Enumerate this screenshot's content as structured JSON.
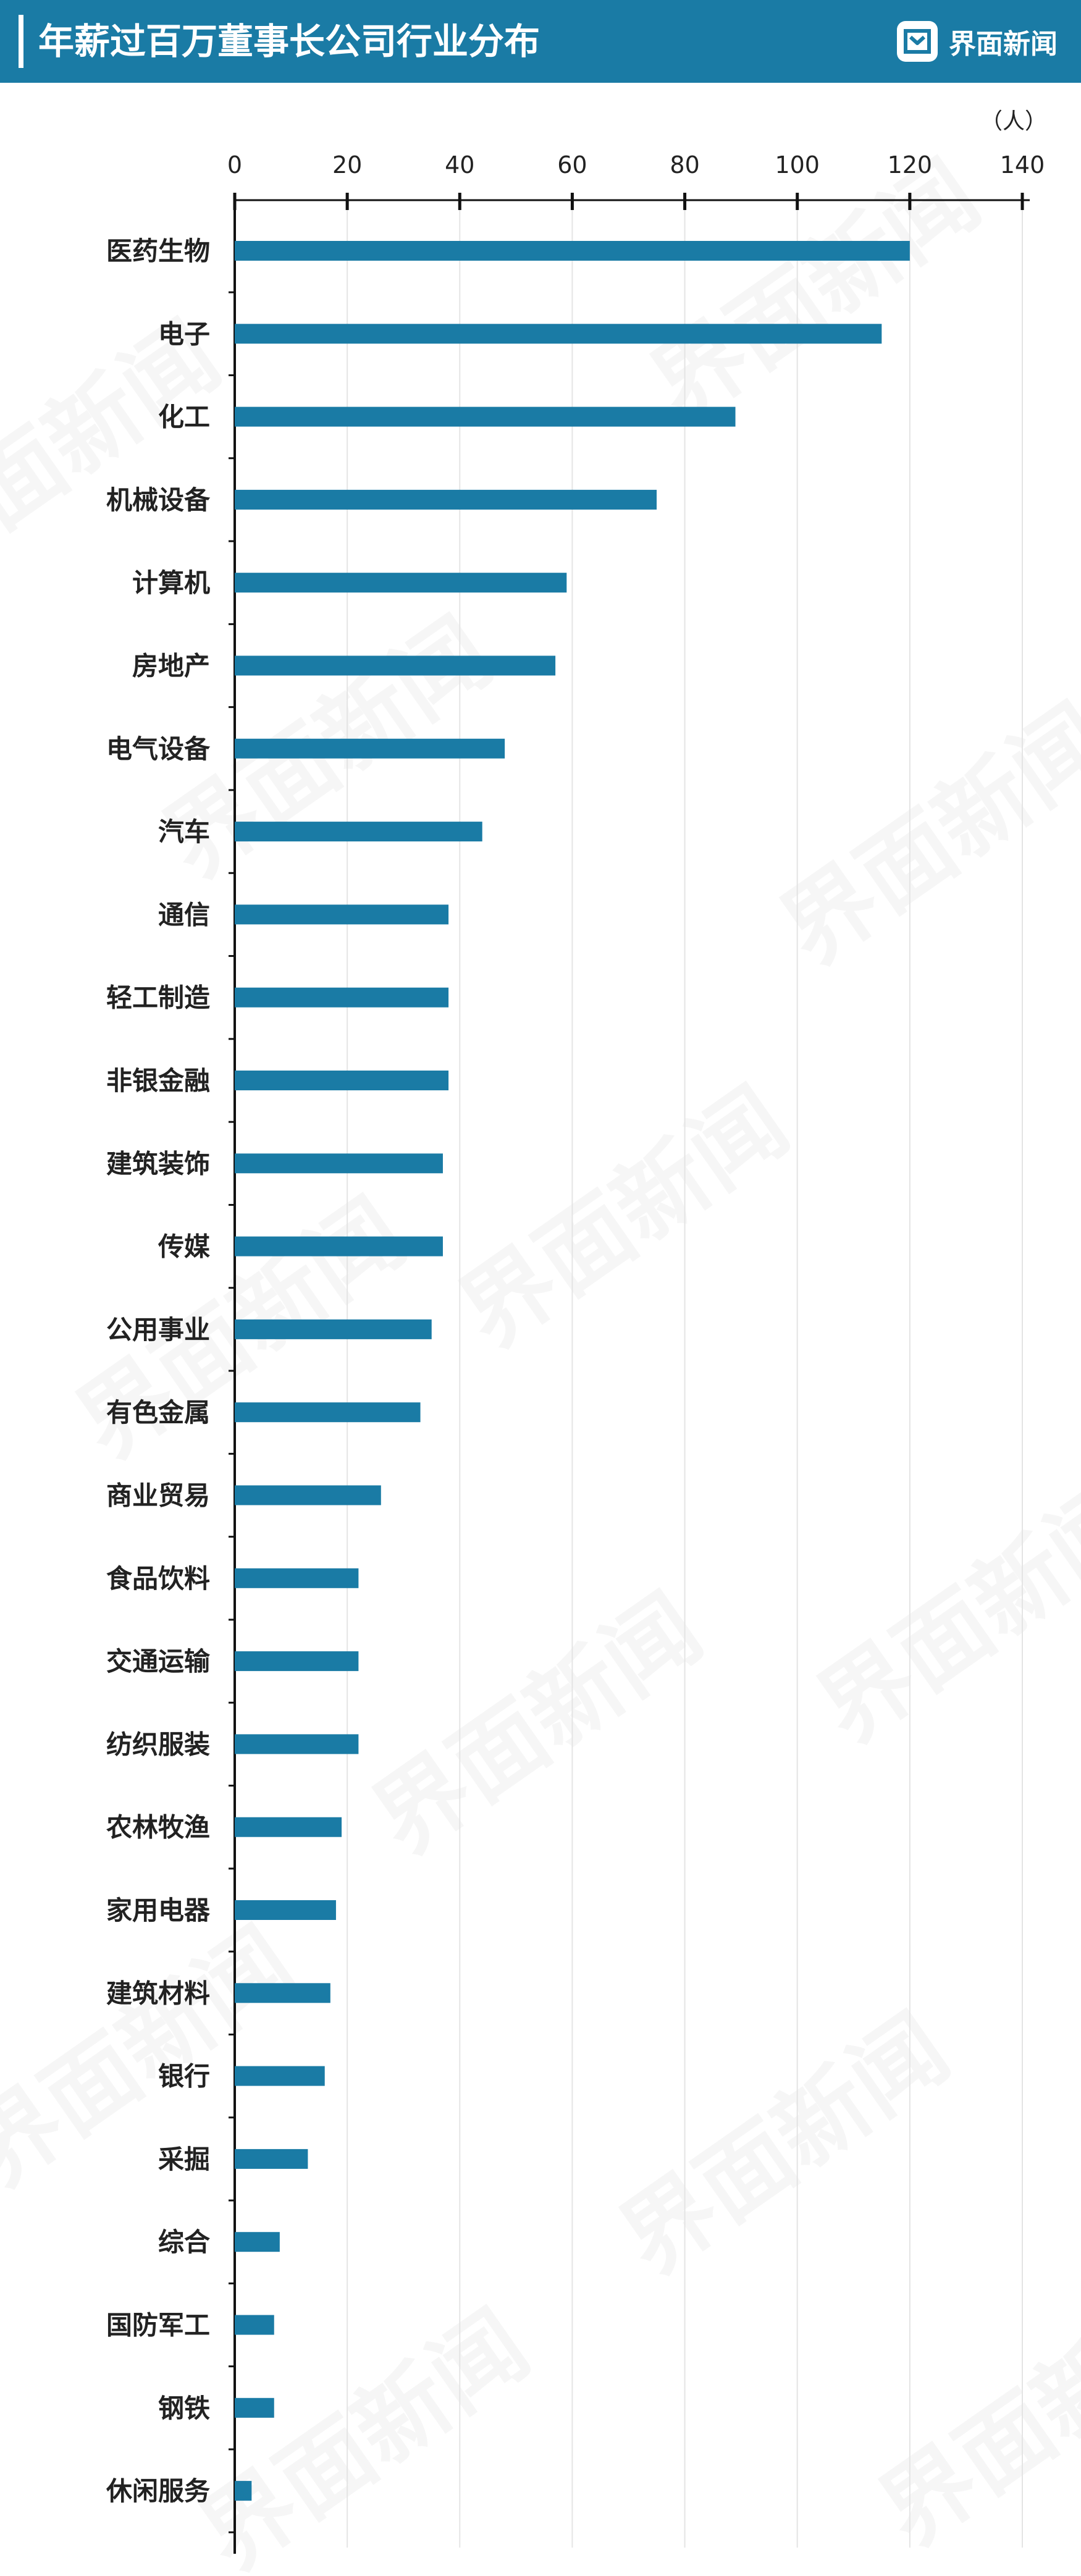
{
  "header": {
    "title": "年薪过百万董事长公司行业分布",
    "brand_name": "界面新闻",
    "brand_icon": "jiemian-logo-icon",
    "background_color": "#1a7ba5"
  },
  "watermark": {
    "text": "界面新闻"
  },
  "chart_data": {
    "type": "bar",
    "orientation": "horizontal",
    "title": "年薪过百万董事长公司行业分布",
    "unit": "（人）",
    "xlim": [
      0,
      140
    ],
    "xticks": [
      0,
      20,
      40,
      60,
      80,
      100,
      120,
      140
    ],
    "grid": true,
    "bar_color": "#1a7ba5",
    "categories": [
      "医药生物",
      "电子",
      "化工",
      "机械设备",
      "计算机",
      "房地产",
      "电气设备",
      "汽车",
      "通信",
      "轻工制造",
      "非银金融",
      "建筑装饰",
      "传媒",
      "公用事业",
      "有色金属",
      "商业贸易",
      "食品饮料",
      "交通运输",
      "纺织服装",
      "农林牧渔",
      "家用电器",
      "建筑材料",
      "银行",
      "采掘",
      "综合",
      "国防军工",
      "钢铁",
      "休闲服务"
    ],
    "values": [
      120,
      115,
      89,
      75,
      59,
      57,
      48,
      44,
      38,
      38,
      38,
      37,
      37,
      35,
      33,
      26,
      22,
      22,
      22,
      19,
      18,
      17,
      16,
      13,
      8,
      7,
      7,
      3
    ]
  }
}
